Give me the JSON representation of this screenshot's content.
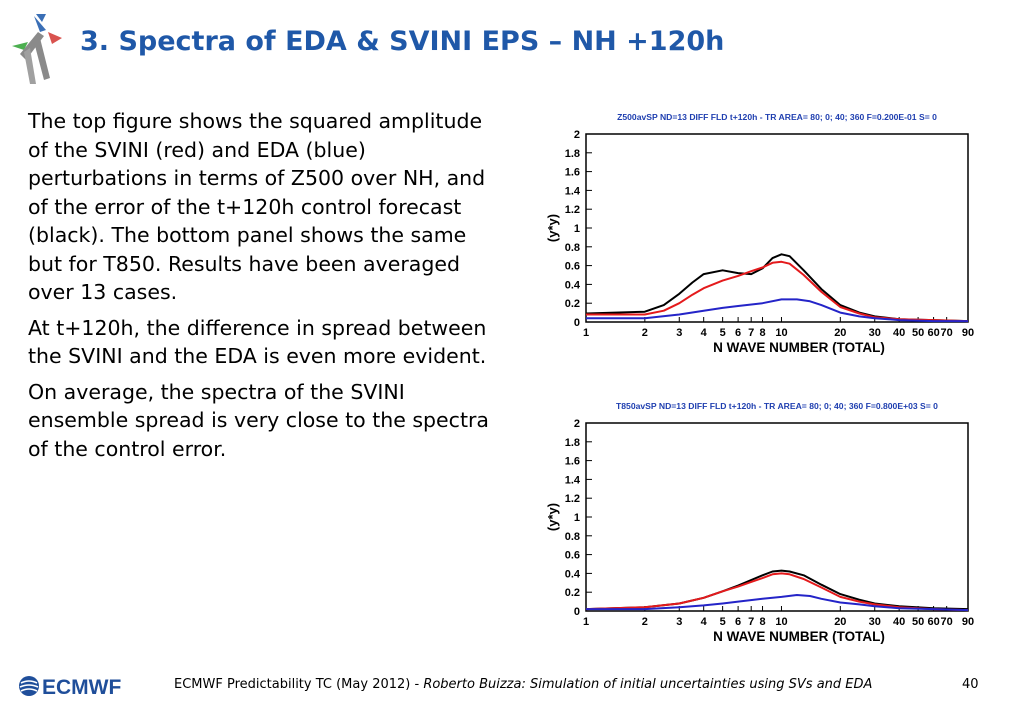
{
  "slide": {
    "title": "3. Spectra of EDA & SVINI EPS – NH +120h",
    "paragraphs": [
      "The top figure shows the squared amplitude of the SVINI (red) and EDA (blue) perturbations in terms of Z500 over NH, and of the error of the t+120h control forecast (black). The bottom panel shows the same but for T850. Results have been averaged over 13 cases.",
      "At t+120h, the difference in spread between the SVINI and the EDA is even more evident.",
      "On average, the spectra of the SVINI ensemble spread is very close to the spectra of the control error."
    ]
  },
  "footer": {
    "logo_text": "ECMWF",
    "event": "ECMWF Predictability TC (May 2012) - ",
    "talk": "Roberto Buizza: Simulation of initial uncertainties using SVs and EDA",
    "page": "40"
  },
  "chart_data": [
    {
      "type": "line",
      "title": "Z500avSP ND=13 DIFF FLD t+120h - TR AREA=  80;   0;  40; 360 F=0.200E-01 S=  0",
      "xlabel": "N WAVE NUMBER (TOTAL)",
      "ylabel": "(y*y)",
      "x_scale": "log",
      "xlim": [
        1,
        90
      ],
      "ylim": [
        0,
        2
      ],
      "x_ticks": [
        1,
        2,
        3,
        4,
        5,
        6,
        7,
        8,
        10,
        20,
        30,
        40,
        50,
        60,
        70,
        90
      ],
      "x_tick_labels": [
        "1",
        "2",
        "3",
        "4",
        "5",
        "6",
        "7",
        "8",
        "10",
        "20",
        "30",
        "40",
        "50",
        "60",
        "70",
        "90"
      ],
      "y_ticks": [
        0,
        0.2,
        0.4,
        0.6,
        0.8,
        1,
        1.2,
        1.4,
        1.6,
        1.8,
        2
      ],
      "y_tick_labels": [
        "0",
        "0.2",
        "0.4",
        "0.6",
        "0.8",
        "1",
        "1.2",
        "1.4",
        "1.6",
        "1.8",
        "2"
      ],
      "series": [
        {
          "color": "#000000",
          "points": [
            [
              1,
              0.09
            ],
            [
              2,
              0.11
            ],
            [
              2.5,
              0.18
            ],
            [
              3,
              0.3
            ],
            [
              3.5,
              0.42
            ],
            [
              4,
              0.51
            ],
            [
              5,
              0.55
            ],
            [
              6,
              0.52
            ],
            [
              7,
              0.51
            ],
            [
              8,
              0.57
            ],
            [
              9,
              0.68
            ],
            [
              10,
              0.72
            ],
            [
              11,
              0.7
            ],
            [
              13,
              0.55
            ],
            [
              16,
              0.35
            ],
            [
              20,
              0.18
            ],
            [
              25,
              0.1
            ],
            [
              30,
              0.06
            ],
            [
              40,
              0.03
            ],
            [
              60,
              0.02
            ],
            [
              90,
              0.01
            ]
          ]
        },
        {
          "color": "#e41a1c",
          "points": [
            [
              1,
              0.08
            ],
            [
              2,
              0.08
            ],
            [
              2.5,
              0.12
            ],
            [
              3,
              0.2
            ],
            [
              3.5,
              0.29
            ],
            [
              4,
              0.36
            ],
            [
              5,
              0.44
            ],
            [
              6,
              0.49
            ],
            [
              7,
              0.54
            ],
            [
              8,
              0.58
            ],
            [
              9,
              0.63
            ],
            [
              10,
              0.64
            ],
            [
              11,
              0.62
            ],
            [
              13,
              0.5
            ],
            [
              16,
              0.32
            ],
            [
              20,
              0.16
            ],
            [
              25,
              0.09
            ],
            [
              30,
              0.05
            ],
            [
              40,
              0.03
            ],
            [
              60,
              0.02
            ],
            [
              90,
              0.01
            ]
          ]
        },
        {
          "color": "#2424c8",
          "points": [
            [
              1,
              0.04
            ],
            [
              2,
              0.04
            ],
            [
              3,
              0.08
            ],
            [
              4,
              0.12
            ],
            [
              5,
              0.15
            ],
            [
              6,
              0.17
            ],
            [
              8,
              0.2
            ],
            [
              10,
              0.24
            ],
            [
              12,
              0.24
            ],
            [
              14,
              0.22
            ],
            [
              16,
              0.18
            ],
            [
              20,
              0.1
            ],
            [
              25,
              0.06
            ],
            [
              30,
              0.04
            ],
            [
              40,
              0.02
            ],
            [
              60,
              0.01
            ],
            [
              90,
              0.01
            ]
          ]
        }
      ]
    },
    {
      "type": "line",
      "title": "T850avSP ND=13 DIFF FLD t+120h - TR AREA=  80;   0;  40; 360 F=0.800E+03 S=  0",
      "xlabel": "N WAVE NUMBER (TOTAL)",
      "ylabel": "(y*y)",
      "x_scale": "log",
      "xlim": [
        1,
        90
      ],
      "ylim": [
        0,
        2
      ],
      "x_ticks": [
        1,
        2,
        3,
        4,
        5,
        6,
        7,
        8,
        10,
        20,
        30,
        40,
        50,
        60,
        70,
        90
      ],
      "x_tick_labels": [
        "1",
        "2",
        "3",
        "4",
        "5",
        "6",
        "7",
        "8",
        "10",
        "20",
        "30",
        "40",
        "50",
        "60",
        "70",
        "90"
      ],
      "y_ticks": [
        0,
        0.2,
        0.4,
        0.6,
        0.8,
        1,
        1.2,
        1.4,
        1.6,
        1.8,
        2
      ],
      "y_tick_labels": [
        "0",
        "0.2",
        "0.4",
        "0.6",
        "0.8",
        "1",
        "1.2",
        "1.4",
        "1.6",
        "1.8",
        "2"
      ],
      "series": [
        {
          "color": "#000000",
          "points": [
            [
              1,
              0.02
            ],
            [
              2,
              0.04
            ],
            [
              3,
              0.08
            ],
            [
              4,
              0.14
            ],
            [
              5,
              0.21
            ],
            [
              6,
              0.27
            ],
            [
              7,
              0.33
            ],
            [
              8,
              0.38
            ],
            [
              9,
              0.42
            ],
            [
              10,
              0.43
            ],
            [
              11,
              0.42
            ],
            [
              13,
              0.38
            ],
            [
              16,
              0.28
            ],
            [
              20,
              0.18
            ],
            [
              25,
              0.12
            ],
            [
              30,
              0.08
            ],
            [
              40,
              0.05
            ],
            [
              60,
              0.03
            ],
            [
              90,
              0.02
            ]
          ]
        },
        {
          "color": "#e41a1c",
          "points": [
            [
              1,
              0.02
            ],
            [
              2,
              0.04
            ],
            [
              3,
              0.08
            ],
            [
              4,
              0.14
            ],
            [
              5,
              0.21
            ],
            [
              6,
              0.26
            ],
            [
              7,
              0.31
            ],
            [
              8,
              0.35
            ],
            [
              9,
              0.39
            ],
            [
              10,
              0.4
            ],
            [
              11,
              0.39
            ],
            [
              13,
              0.34
            ],
            [
              16,
              0.25
            ],
            [
              20,
              0.15
            ],
            [
              25,
              0.1
            ],
            [
              30,
              0.07
            ],
            [
              40,
              0.04
            ],
            [
              60,
              0.02
            ],
            [
              90,
              0.01
            ]
          ]
        },
        {
          "color": "#2424c8",
          "points": [
            [
              1,
              0.02
            ],
            [
              2,
              0.02
            ],
            [
              3,
              0.04
            ],
            [
              4,
              0.06
            ],
            [
              5,
              0.08
            ],
            [
              6,
              0.1
            ],
            [
              8,
              0.13
            ],
            [
              10,
              0.15
            ],
            [
              12,
              0.17
            ],
            [
              14,
              0.16
            ],
            [
              16,
              0.13
            ],
            [
              20,
              0.09
            ],
            [
              25,
              0.07
            ],
            [
              30,
              0.05
            ],
            [
              40,
              0.03
            ],
            [
              60,
              0.02
            ],
            [
              90,
              0.01
            ]
          ]
        }
      ]
    }
  ]
}
